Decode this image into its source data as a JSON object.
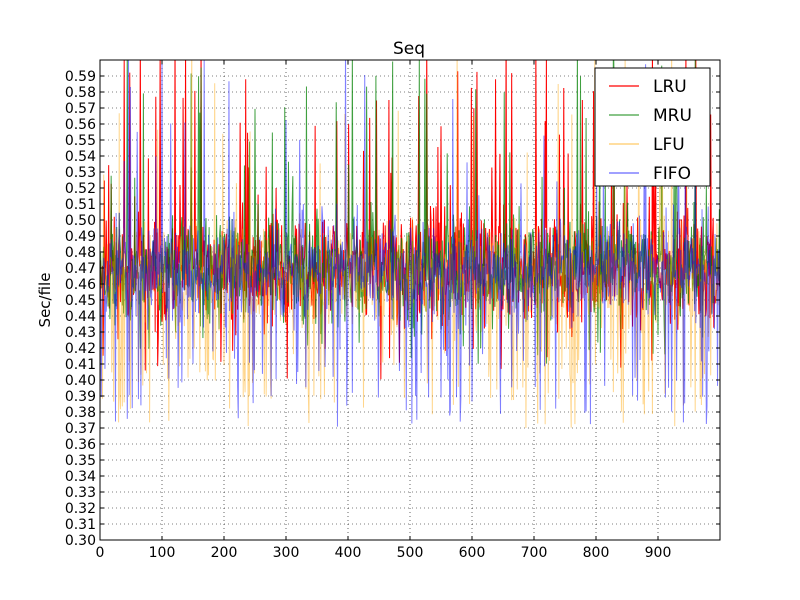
{
  "chart_data": {
    "type": "line",
    "title": "Seq",
    "xlabel": "",
    "ylabel": "Sec/file",
    "xlim": [
      0,
      1000
    ],
    "ylim": [
      0.3,
      0.6
    ],
    "x_ticks": [
      0,
      100,
      200,
      300,
      400,
      500,
      600,
      700,
      800,
      900
    ],
    "y_ticks": [
      0.3,
      0.31,
      0.32,
      0.33,
      0.34,
      0.35,
      0.36,
      0.37,
      0.38,
      0.39,
      0.4,
      0.41,
      0.42,
      0.43,
      0.44,
      0.45,
      0.46,
      0.47,
      0.48,
      0.49,
      0.5,
      0.51,
      0.52,
      0.53,
      0.54,
      0.55,
      0.56,
      0.57,
      0.58,
      0.59
    ],
    "grid": true,
    "legend_position": "top-right",
    "x_count": 1000,
    "series": [
      {
        "name": "LRU",
        "color": "#ff0000",
        "opacity": 1.0,
        "mean": 0.47,
        "spread": 0.025,
        "low_spikes": 0.04,
        "high_spikes": 0.04,
        "low_floor": 0.4,
        "seed": 11
      },
      {
        "name": "MRU",
        "color": "#008000",
        "opacity": 0.75,
        "mean": 0.47,
        "spread": 0.025,
        "low_spikes": 0.04,
        "high_spikes": 0.05,
        "low_floor": 0.41,
        "seed": 23
      },
      {
        "name": "LFU",
        "color": "#ffa500",
        "opacity": 0.45,
        "mean": 0.465,
        "spread": 0.025,
        "low_spikes": 0.1,
        "high_spikes": 0.03,
        "low_floor": 0.37,
        "seed": 37
      },
      {
        "name": "FIFO",
        "color": "#0000ff",
        "opacity": 0.5,
        "mean": 0.47,
        "spread": 0.025,
        "low_spikes": 0.09,
        "high_spikes": 0.03,
        "low_floor": 0.37,
        "seed": 53
      }
    ]
  }
}
